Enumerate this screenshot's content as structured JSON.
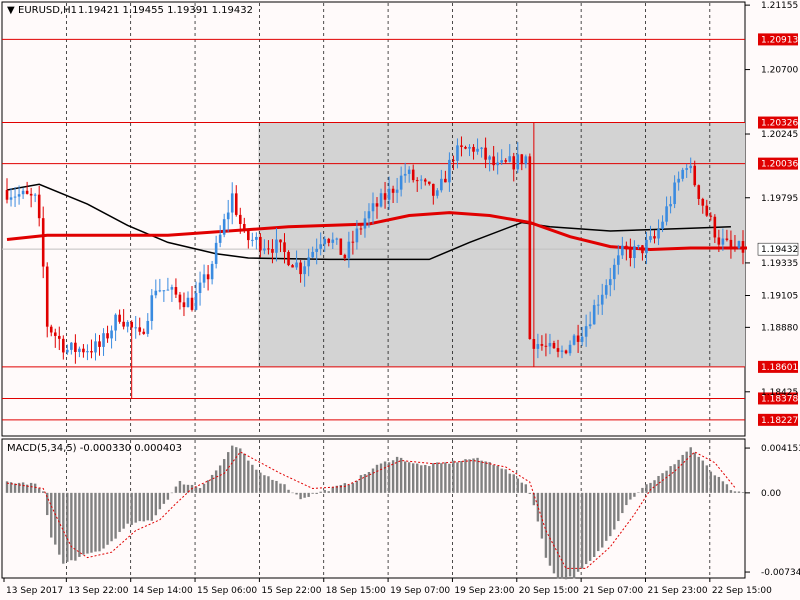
{
  "header": {
    "symbol_tf": "EURUSD,H1",
    "ohlc": "1.19421 1.19455 1.19391 1.19432"
  },
  "macd_header": "MACD(5,34,5) -0.000330 0.000403",
  "colors": {
    "background": "#fffafa",
    "bull": "#3a8be0",
    "bear": "#e00000",
    "ma_fast": "#e00000",
    "ma_slow": "#000000",
    "zone_fill": "#d3d3d3",
    "level_line": "#e00000",
    "macd_hist": "#808080",
    "macd_signal": "#e00000",
    "grid": "#000000"
  },
  "chart_data": [
    {
      "type": "candlestick",
      "title": "EURUSD,H1",
      "ylim": [
        1.1812,
        1.2117
      ],
      "y_ticks": [
        "1.21155",
        "1.20700",
        "1.20245",
        "1.19795",
        "1.19335",
        "1.19105",
        "1.18880",
        "1.18425"
      ],
      "x_labels": [
        "13 Sep 2017",
        "13 Sep 22:00",
        "14 Sep 14:00",
        "15 Sep 06:00",
        "15 Sep 22:00",
        "18 Sep 15:00",
        "19 Sep 07:00",
        "19 Sep 23:00",
        "20 Sep 15:00",
        "21 Sep 07:00",
        "21 Sep 23:00",
        "22 Sep 15:00"
      ],
      "horizontal_levels": [
        {
          "label": "1.20913",
          "value": 1.20913
        },
        {
          "label": "1.20326",
          "value": 1.20326
        },
        {
          "label": "1.20036",
          "value": 1.20036
        },
        {
          "label": "1.18601",
          "value": 1.18601
        },
        {
          "label": "1.18378",
          "value": 1.18378
        },
        {
          "label": "1.18227",
          "value": 1.18227
        }
      ],
      "current_price": {
        "label": "1.19432",
        "value": 1.19432
      },
      "zone": {
        "x_start_bar": 63,
        "x_end_bar": 184,
        "y_top": 1.20326,
        "y_bottom": 1.18601
      },
      "num_bars": 184,
      "price_path": [
        [
          0,
          1.1985
        ],
        [
          8,
          1.1978
        ],
        [
          9,
          1.196
        ],
        [
          10,
          1.193
        ],
        [
          11,
          1.189
        ],
        [
          16,
          1.1872
        ],
        [
          24,
          1.1874
        ],
        [
          29,
          1.1897
        ],
        [
          34,
          1.188
        ],
        [
          38,
          1.1917
        ],
        [
          47,
          1.1905
        ],
        [
          51,
          1.1925
        ],
        [
          54,
          1.1952
        ],
        [
          57,
          1.1981
        ],
        [
          60,
          1.1951
        ],
        [
          68,
          1.1945
        ],
        [
          74,
          1.193
        ],
        [
          80,
          1.1955
        ],
        [
          85,
          1.1938
        ],
        [
          90,
          1.1965
        ],
        [
          96,
          1.1983
        ],
        [
          100,
          1.1997
        ],
        [
          108,
          1.198
        ],
        [
          112,
          1.201
        ],
        [
          117,
          1.2015
        ],
        [
          123,
          1.2
        ],
        [
          130,
          1.2008
        ],
        [
          131,
          1.188
        ],
        [
          138,
          1.1868
        ],
        [
          145,
          1.189
        ],
        [
          150,
          1.192
        ],
        [
          154,
          1.194
        ],
        [
          158,
          1.1942
        ],
        [
          162,
          1.195
        ],
        [
          167,
          1.1985
        ],
        [
          170,
          1.2005
        ],
        [
          175,
          1.1968
        ],
        [
          178,
          1.195
        ],
        [
          181,
          1.1943
        ]
      ],
      "spikes": [
        {
          "bar": 31,
          "low": 1.1838
        },
        {
          "bar": 131,
          "high": 1.2033,
          "low": 1.186
        }
      ],
      "ma_fast": [
        [
          0,
          1.195
        ],
        [
          10,
          1.1953
        ],
        [
          40,
          1.1953
        ],
        [
          70,
          1.1959
        ],
        [
          90,
          1.1961
        ],
        [
          100,
          1.1967
        ],
        [
          110,
          1.1969
        ],
        [
          120,
          1.1967
        ],
        [
          130,
          1.1962
        ],
        [
          140,
          1.1952
        ],
        [
          150,
          1.1945
        ],
        [
          160,
          1.1943
        ],
        [
          170,
          1.1944
        ],
        [
          184,
          1.1944
        ]
      ],
      "ma_slow": [
        [
          0,
          1.1985
        ],
        [
          8,
          1.1989
        ],
        [
          20,
          1.1975
        ],
        [
          30,
          1.196
        ],
        [
          40,
          1.1948
        ],
        [
          52,
          1.194
        ],
        [
          60,
          1.1937
        ],
        [
          80,
          1.1936
        ],
        [
          105,
          1.1936
        ],
        [
          115,
          1.1948
        ],
        [
          128,
          1.1962
        ],
        [
          135,
          1.1959
        ],
        [
          150,
          1.1956
        ],
        [
          160,
          1.1957
        ],
        [
          170,
          1.1958
        ],
        [
          180,
          1.1959
        ]
      ]
    },
    {
      "type": "bar",
      "title": "MACD(5,34,5)",
      "ylim": [
        -0.0078,
        0.0049
      ],
      "y_ticks": [
        "0.004153",
        "0.00",
        "-0.00734"
      ],
      "hist_path": [
        [
          0,
          0.001
        ],
        [
          7,
          0.0008
        ],
        [
          9,
          0.0
        ],
        [
          11,
          -0.004
        ],
        [
          14,
          -0.0066
        ],
        [
          18,
          -0.006
        ],
        [
          24,
          -0.0052
        ],
        [
          30,
          -0.003
        ],
        [
          36,
          -0.0025
        ],
        [
          40,
          -0.0005
        ],
        [
          43,
          0.001
        ],
        [
          48,
          0.0005
        ],
        [
          53,
          0.0025
        ],
        [
          56,
          0.0044
        ],
        [
          58,
          0.004
        ],
        [
          62,
          0.002
        ],
        [
          68,
          0.001
        ],
        [
          73,
          -0.0005
        ],
        [
          80,
          0.0003
        ],
        [
          86,
          0.001
        ],
        [
          92,
          0.0025
        ],
        [
          97,
          0.0033
        ],
        [
          103,
          0.0025
        ],
        [
          110,
          0.0028
        ],
        [
          116,
          0.0032
        ],
        [
          122,
          0.0026
        ],
        [
          129,
          0.0008
        ],
        [
          131,
          -0.001
        ],
        [
          134,
          -0.006
        ],
        [
          137,
          -0.008
        ],
        [
          141,
          -0.0078
        ],
        [
          146,
          -0.006
        ],
        [
          150,
          -0.004
        ],
        [
          154,
          -0.001
        ],
        [
          158,
          0.0005
        ],
        [
          164,
          0.002
        ],
        [
          168,
          0.0035
        ],
        [
          170,
          0.0042
        ],
        [
          175,
          0.002
        ],
        [
          181,
          0.0
        ]
      ],
      "signal_path": [
        [
          0,
          0.0009
        ],
        [
          9,
          0.0004
        ],
        [
          12,
          -0.002
        ],
        [
          16,
          -0.005
        ],
        [
          20,
          -0.006
        ],
        [
          26,
          -0.0055
        ],
        [
          32,
          -0.0035
        ],
        [
          38,
          -0.0025
        ],
        [
          42,
          -0.001
        ],
        [
          46,
          0.0004
        ],
        [
          54,
          0.0018
        ],
        [
          58,
          0.0038
        ],
        [
          62,
          0.003
        ],
        [
          68,
          0.0018
        ],
        [
          76,
          0.0004
        ],
        [
          84,
          0.0006
        ],
        [
          92,
          0.002
        ],
        [
          98,
          0.003
        ],
        [
          106,
          0.0027
        ],
        [
          116,
          0.003
        ],
        [
          124,
          0.0024
        ],
        [
          130,
          0.001
        ],
        [
          134,
          -0.0035
        ],
        [
          139,
          -0.007
        ],
        [
          144,
          -0.007
        ],
        [
          150,
          -0.005
        ],
        [
          156,
          -0.002
        ],
        [
          160,
          0.0003
        ],
        [
          166,
          0.002
        ],
        [
          171,
          0.0038
        ],
        [
          176,
          0.0028
        ],
        [
          181,
          0.0005
        ]
      ]
    }
  ]
}
